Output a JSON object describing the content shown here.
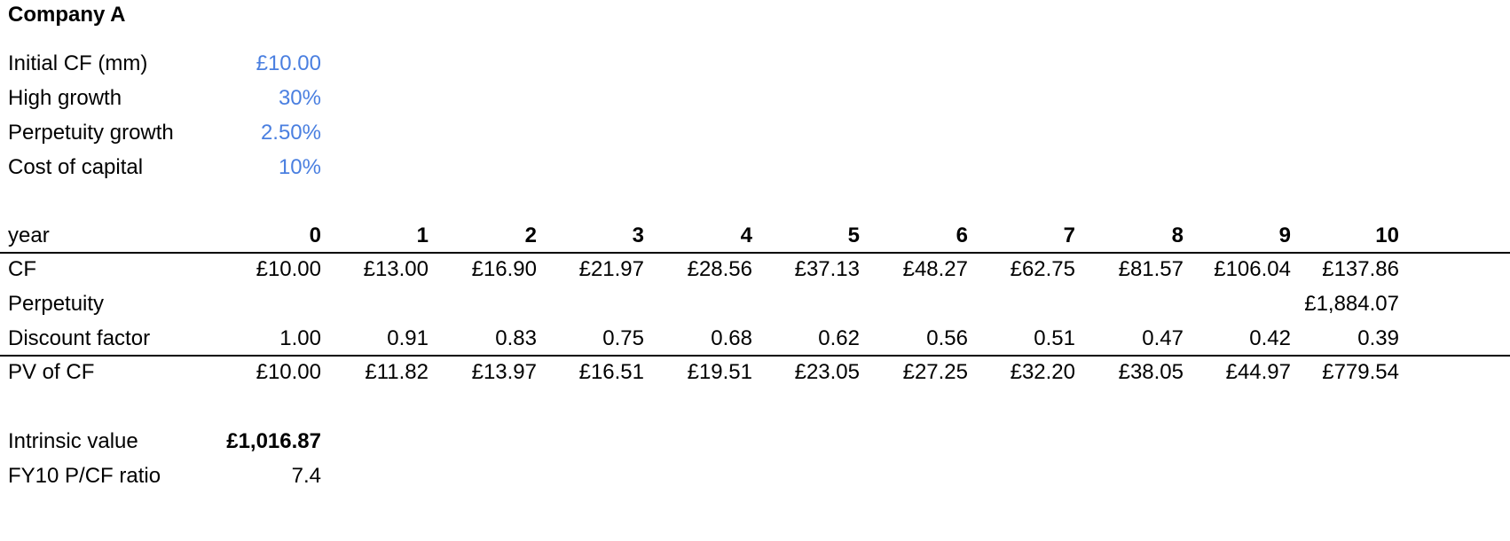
{
  "title": "Company A",
  "inputs": [
    {
      "label": "Initial CF (mm)",
      "value": "£10.00"
    },
    {
      "label": "High growth",
      "value": "30%"
    },
    {
      "label": "Perpetuity growth",
      "value": "2.50%"
    },
    {
      "label": "Cost of capital",
      "value": "10%"
    }
  ],
  "table": {
    "year_label": "year",
    "years": [
      "0",
      "1",
      "2",
      "3",
      "4",
      "5",
      "6",
      "7",
      "8",
      "9",
      "10"
    ],
    "rows": [
      {
        "label": "CF",
        "cells": [
          "£10.00",
          "£13.00",
          "£16.90",
          "£21.97",
          "£28.56",
          "£37.13",
          "£48.27",
          "£62.75",
          "£81.57",
          "£106.04",
          "£137.86"
        ]
      },
      {
        "label": "Perpetuity",
        "cells": [
          "",
          "",
          "",
          "",
          "",
          "",
          "",
          "",
          "",
          "",
          "£1,884.07"
        ]
      },
      {
        "label": "Discount factor",
        "cells": [
          "1.00",
          "0.91",
          "0.83",
          "0.75",
          "0.68",
          "0.62",
          "0.56",
          "0.51",
          "0.47",
          "0.42",
          "0.39"
        ]
      },
      {
        "label": "PV of CF",
        "cells": [
          "£10.00",
          "£11.82",
          "£13.97",
          "£16.51",
          "£19.51",
          "£23.05",
          "£27.25",
          "£32.20",
          "£38.05",
          "£44.97",
          "£779.54"
        ]
      }
    ]
  },
  "results": [
    {
      "label": "Intrinsic value",
      "value": "£1,016.87"
    },
    {
      "label": "FY10 P/CF ratio",
      "value": "7.4"
    }
  ],
  "colors": {
    "input_text": "#4a7fe0",
    "text": "#000000",
    "rule": "#000000"
  }
}
